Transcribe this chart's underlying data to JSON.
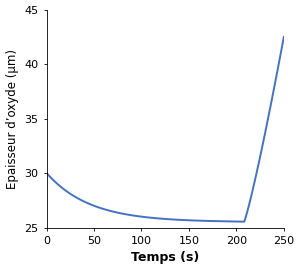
{
  "xlabel": "Temps (s)",
  "ylabel": "Epaisseur d’oxyde (µm)",
  "xlim": [
    0,
    250
  ],
  "ylim": [
    25,
    45
  ],
  "xticks": [
    0,
    50,
    100,
    150,
    200,
    250
  ],
  "yticks": [
    25,
    30,
    35,
    40,
    45
  ],
  "line_color": "#4472c4",
  "line_width": 1.4,
  "background_color": "#ffffff",
  "initial_value": 30.0,
  "min_value": 25.5,
  "min_time": 208,
  "final_value": 42.5,
  "final_time": 250,
  "decay_k": 0.022,
  "rise_power": 1.15,
  "xlabel_fontsize": 9,
  "ylabel_fontsize": 8.5,
  "tick_fontsize": 8
}
